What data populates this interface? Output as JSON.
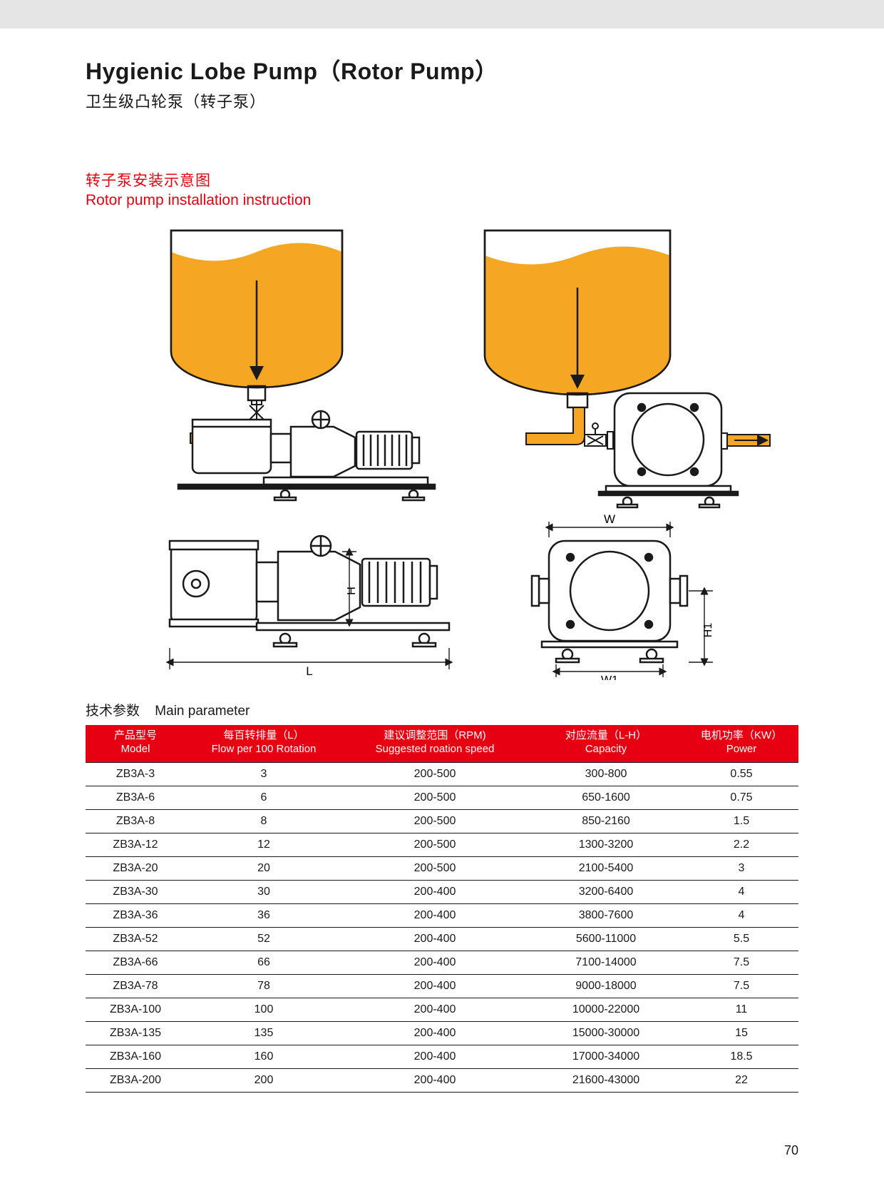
{
  "colors": {
    "accent": "#e60012",
    "tank_fill": "#f5a623",
    "diagram_stroke": "#1a1a1a",
    "topbar": "#e5e5e5",
    "text": "#1a1a1a"
  },
  "header": {
    "title_en": "Hygienic Lobe Pump（Rotor Pump）",
    "title_zh": "卫生级凸轮泵（转子泵）"
  },
  "section": {
    "zh": "转子泵安装示意图",
    "en": "Rotor pump installation instruction"
  },
  "diagram": {
    "labels": {
      "W": "W",
      "W1": "W1",
      "H": "H",
      "H1": "H1",
      "L": "L"
    }
  },
  "param_section": {
    "zh": "技术参数",
    "en": "Main parameter"
  },
  "table": {
    "columns": [
      {
        "cn": "产品型号",
        "en": "Model"
      },
      {
        "cn": "每百转排量（L）",
        "en": "Flow per 100 Rotation"
      },
      {
        "cn": "建议调整范围（RPM)",
        "en": "Suggested roation speed"
      },
      {
        "cn": "对应流量（L-H）",
        "en": "Capacity"
      },
      {
        "cn": "电机功率（KW）",
        "en": "Power"
      }
    ],
    "rows": [
      [
        "ZB3A-3",
        "3",
        "200-500",
        "300-800",
        "0.55"
      ],
      [
        "ZB3A-6",
        "6",
        "200-500",
        "650-1600",
        "0.75"
      ],
      [
        "ZB3A-8",
        "8",
        "200-500",
        "850-2160",
        "1.5"
      ],
      [
        "ZB3A-12",
        "12",
        "200-500",
        "1300-3200",
        "2.2"
      ],
      [
        "ZB3A-20",
        "20",
        "200-500",
        "2100-5400",
        "3"
      ],
      [
        "ZB3A-30",
        "30",
        "200-400",
        "3200-6400",
        "4"
      ],
      [
        "ZB3A-36",
        "36",
        "200-400",
        "3800-7600",
        "4"
      ],
      [
        "ZB3A-52",
        "52",
        "200-400",
        "5600-11000",
        "5.5"
      ],
      [
        "ZB3A-66",
        "66",
        "200-400",
        "7100-14000",
        "7.5"
      ],
      [
        "ZB3A-78",
        "78",
        "200-400",
        "9000-18000",
        "7.5"
      ],
      [
        "ZB3A-100",
        "100",
        "200-400",
        "10000-22000",
        "11"
      ],
      [
        "ZB3A-135",
        "135",
        "200-400",
        "15000-30000",
        "15"
      ],
      [
        "ZB3A-160",
        "160",
        "200-400",
        "17000-34000",
        "18.5"
      ],
      [
        "ZB3A-200",
        "200",
        "200-400",
        "21600-43000",
        "22"
      ]
    ]
  },
  "page_number": "70"
}
